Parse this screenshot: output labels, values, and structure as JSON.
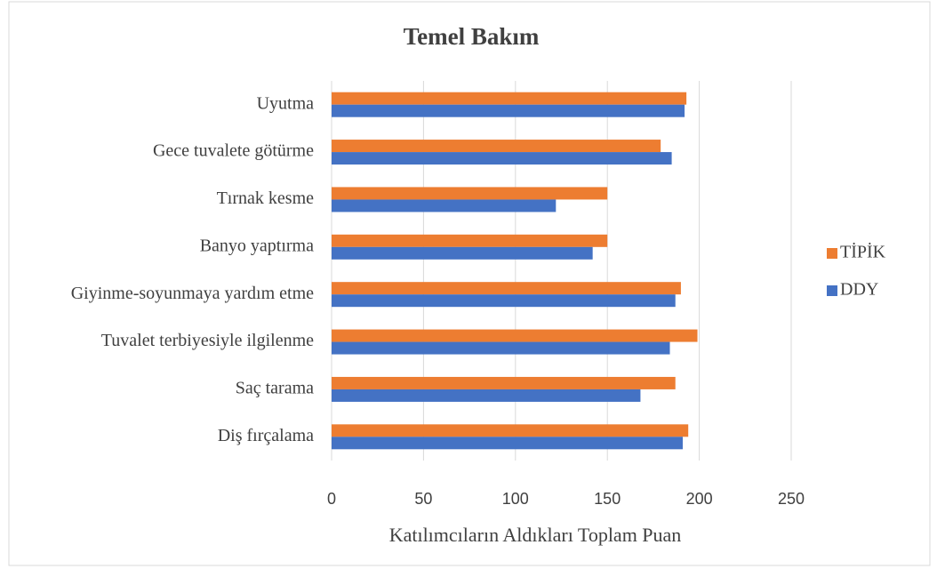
{
  "chart_data": {
    "type": "bar",
    "orientation": "horizontal",
    "title": "Temel Bakım",
    "x_label": "Katılımcıların Aldıkları Toplam Puan",
    "categories": [
      "Uyutma",
      "Gece tuvalete götürme",
      "Tırnak kesme",
      "Banyo yaptırma",
      "Giyinme-soyunmaya yardım etme",
      "Tuvalet terbiyesiyle ilgilenme",
      "Saç tarama",
      "Diş fırçalama"
    ],
    "series": [
      {
        "name": "TİPİK",
        "color": "#ed7d31",
        "values": [
          193,
          179,
          150,
          150,
          190,
          199,
          187,
          194
        ]
      },
      {
        "name": "DDY",
        "color": "#4472c4",
        "values": [
          192,
          185,
          122,
          142,
          187,
          184,
          168,
          191
        ]
      }
    ],
    "xlim": [
      0,
      250
    ],
    "xticks": [
      0,
      50,
      100,
      150,
      200,
      250
    ],
    "grid": true,
    "legend": "right"
  }
}
